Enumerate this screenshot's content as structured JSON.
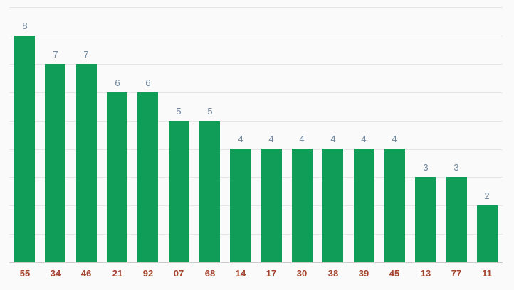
{
  "chart_data": {
    "type": "bar",
    "categories": [
      "55",
      "34",
      "46",
      "21",
      "92",
      "07",
      "68",
      "14",
      "17",
      "30",
      "38",
      "39",
      "45",
      "13",
      "77",
      "11"
    ],
    "values": [
      8,
      7,
      7,
      6,
      6,
      5,
      5,
      4,
      4,
      4,
      4,
      4,
      4,
      3,
      3,
      2
    ],
    "title": "",
    "xlabel": "",
    "ylabel": "",
    "ylim": [
      0,
      9
    ],
    "grid": true,
    "legend": "none",
    "value_labels_shown": true,
    "y_axis_tick_labels_shown": false,
    "colors": {
      "bar": "#0f9d58",
      "value_label": "#71879e",
      "category_label": "#a5442f",
      "gridline": "#e6e6e6",
      "baseline": "#cccccc",
      "background": "#fafafa"
    }
  }
}
